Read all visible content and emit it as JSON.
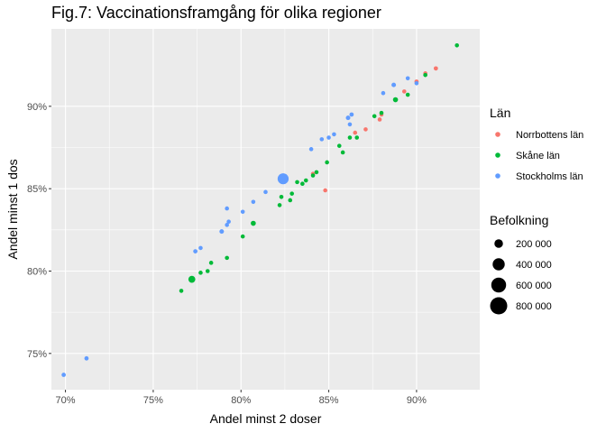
{
  "chart_data": {
    "type": "scatter",
    "title": "Fig.7: Vaccinationsframgång för olika regioner",
    "xlabel": "Andel minst 2 doser",
    "ylabel": "Andel minst 1 dos",
    "xlim": [
      69.2,
      93.6
    ],
    "ylim": [
      72.8,
      94.7
    ],
    "x_ticks": [
      {
        "value": 70,
        "label": "70%"
      },
      {
        "value": 75,
        "label": "75%"
      },
      {
        "value": 80,
        "label": "80%"
      },
      {
        "value": 85,
        "label": "85%"
      },
      {
        "value": 90,
        "label": "90%"
      }
    ],
    "y_ticks": [
      {
        "value": 75,
        "label": "75%"
      },
      {
        "value": 80,
        "label": "80%"
      },
      {
        "value": 85,
        "label": "85%"
      },
      {
        "value": 90,
        "label": "90%"
      }
    ],
    "grid": true,
    "legend_position": "right",
    "color_legend": {
      "title": "Län",
      "entries": [
        {
          "name": "Norrbottens län",
          "color": "#F8766D"
        },
        {
          "name": "Skåne län",
          "color": "#00BA38"
        },
        {
          "name": "Stockholms län",
          "color": "#619CFF"
        }
      ]
    },
    "size_legend": {
      "title": "Befolkning",
      "entries": [
        {
          "label": "200 000",
          "value": 200000
        },
        {
          "label": "400 000",
          "value": 400000
        },
        {
          "label": "600 000",
          "value": 600000
        },
        {
          "label": "800 000",
          "value": 800000
        }
      ]
    },
    "series": [
      {
        "name": "Norrbottens län",
        "color": "#F8766D",
        "points": [
          {
            "x": 84.1,
            "y": 85.9,
            "size": 20000
          },
          {
            "x": 84.8,
            "y": 84.9,
            "size": 15000
          },
          {
            "x": 86.5,
            "y": 88.4,
            "size": 20000
          },
          {
            "x": 87.1,
            "y": 88.6,
            "size": 25000
          },
          {
            "x": 87.9,
            "y": 89.2,
            "size": 20000
          },
          {
            "x": 88.0,
            "y": 89.5,
            "size": 30000
          },
          {
            "x": 89.3,
            "y": 90.9,
            "size": 15000
          },
          {
            "x": 90.0,
            "y": 91.5,
            "size": 50000
          },
          {
            "x": 90.5,
            "y": 92.0,
            "size": 30000
          },
          {
            "x": 91.1,
            "y": 92.3,
            "size": 50000
          }
        ]
      },
      {
        "name": "Skåne län",
        "color": "#00BA38",
        "points": [
          {
            "x": 76.6,
            "y": 78.8,
            "size": 20000
          },
          {
            "x": 77.2,
            "y": 79.5,
            "size": 130000
          },
          {
            "x": 77.7,
            "y": 79.9,
            "size": 25000
          },
          {
            "x": 78.1,
            "y": 80.0,
            "size": 20000
          },
          {
            "x": 78.3,
            "y": 80.5,
            "size": 15000
          },
          {
            "x": 79.2,
            "y": 80.8,
            "size": 20000
          },
          {
            "x": 80.1,
            "y": 82.1,
            "size": 45000
          },
          {
            "x": 80.7,
            "y": 82.9,
            "size": 70000
          },
          {
            "x": 82.2,
            "y": 84.0,
            "size": 25000
          },
          {
            "x": 82.3,
            "y": 84.5,
            "size": 20000
          },
          {
            "x": 82.8,
            "y": 84.3,
            "size": 20000
          },
          {
            "x": 82.9,
            "y": 84.7,
            "size": 25000
          },
          {
            "x": 83.2,
            "y": 85.4,
            "size": 20000
          },
          {
            "x": 83.5,
            "y": 85.3,
            "size": 30000
          },
          {
            "x": 83.7,
            "y": 85.5,
            "size": 25000
          },
          {
            "x": 84.1,
            "y": 85.8,
            "size": 20000
          },
          {
            "x": 84.3,
            "y": 86.0,
            "size": 15000
          },
          {
            "x": 84.9,
            "y": 86.6,
            "size": 25000
          },
          {
            "x": 85.6,
            "y": 87.6,
            "size": 30000
          },
          {
            "x": 85.8,
            "y": 87.2,
            "size": 20000
          },
          {
            "x": 86.2,
            "y": 88.1,
            "size": 40000
          },
          {
            "x": 86.6,
            "y": 88.1,
            "size": 20000
          },
          {
            "x": 87.6,
            "y": 89.4,
            "size": 30000
          },
          {
            "x": 88.0,
            "y": 89.6,
            "size": 30000
          },
          {
            "x": 88.8,
            "y": 90.4,
            "size": 70000
          },
          {
            "x": 89.5,
            "y": 90.7,
            "size": 25000
          },
          {
            "x": 90.5,
            "y": 91.9,
            "size": 30000
          },
          {
            "x": 92.3,
            "y": 93.7,
            "size": 25000
          }
        ]
      },
      {
        "name": "Stockholms län",
        "color": "#619CFF",
        "points": [
          {
            "x": 69.9,
            "y": 73.7,
            "size": 50000
          },
          {
            "x": 71.2,
            "y": 74.7,
            "size": 50000
          },
          {
            "x": 77.4,
            "y": 81.2,
            "size": 50000
          },
          {
            "x": 77.7,
            "y": 81.4,
            "size": 30000
          },
          {
            "x": 78.9,
            "y": 82.4,
            "size": 55000
          },
          {
            "x": 79.2,
            "y": 82.8,
            "size": 30000
          },
          {
            "x": 79.3,
            "y": 83.0,
            "size": 25000
          },
          {
            "x": 79.2,
            "y": 83.8,
            "size": 25000
          },
          {
            "x": 80.1,
            "y": 83.6,
            "size": 35000
          },
          {
            "x": 80.7,
            "y": 84.2,
            "size": 25000
          },
          {
            "x": 81.4,
            "y": 84.8,
            "size": 25000
          },
          {
            "x": 82.4,
            "y": 85.6,
            "size": 330000
          },
          {
            "x": 84.0,
            "y": 87.4,
            "size": 35000
          },
          {
            "x": 84.6,
            "y": 88.0,
            "size": 35000
          },
          {
            "x": 85.0,
            "y": 88.1,
            "size": 30000
          },
          {
            "x": 85.3,
            "y": 88.3,
            "size": 25000
          },
          {
            "x": 86.1,
            "y": 89.3,
            "size": 55000
          },
          {
            "x": 86.3,
            "y": 89.5,
            "size": 50000
          },
          {
            "x": 86.2,
            "y": 88.9,
            "size": 30000
          },
          {
            "x": 88.1,
            "y": 90.8,
            "size": 35000
          },
          {
            "x": 88.7,
            "y": 91.3,
            "size": 55000
          },
          {
            "x": 89.5,
            "y": 91.7,
            "size": 30000
          },
          {
            "x": 90.0,
            "y": 91.4,
            "size": 25000
          }
        ]
      }
    ]
  }
}
